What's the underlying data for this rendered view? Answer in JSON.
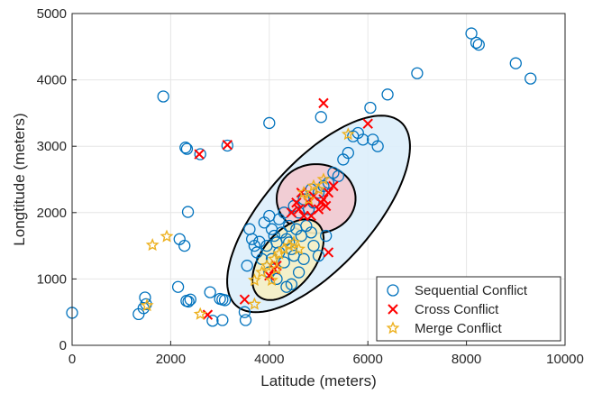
{
  "chart_data": {
    "type": "scatter",
    "xlabel": "Latitude (meters)",
    "ylabel": "Longtitude (meters)",
    "xlim": [
      0,
      10000
    ],
    "ylim": [
      0,
      5000
    ],
    "xticks": [
      "0",
      "2000",
      "4000",
      "6000",
      "8000",
      "10000"
    ],
    "yticks": [
      "0",
      "1000",
      "2000",
      "3000",
      "4000",
      "5000"
    ],
    "grid": true,
    "legend_position": "bottom-right",
    "colors": {
      "sequential": "#0072BD",
      "cross": "#FF0000",
      "merge": "#EDB120",
      "outer_ellipse_fill": "#ddeefb",
      "upper_ellipse_fill": "#f3c9cf",
      "lower_ellipse_fill": "#f6efc4"
    },
    "regions": [
      {
        "cx": 5000,
        "cy": 1980,
        "rx": 2500,
        "ry": 800,
        "angle_deg": 48,
        "fill": "outer_ellipse_fill"
      },
      {
        "cx": 4950,
        "cy": 2210,
        "rx": 800,
        "ry": 520,
        "angle_deg": 0,
        "fill": "upper_ellipse_fill"
      },
      {
        "cx": 4380,
        "cy": 1290,
        "rx": 950,
        "ry": 400,
        "angle_deg": 52,
        "fill": "lower_ellipse_fill"
      }
    ],
    "series": [
      {
        "name": "Sequential Conflict",
        "marker": "circle",
        "points": [
          [
            0,
            490
          ],
          [
            1350,
            470
          ],
          [
            1450,
            560
          ],
          [
            1480,
            720
          ],
          [
            1500,
            620
          ],
          [
            1850,
            3750
          ],
          [
            2150,
            880
          ],
          [
            2180,
            1600
          ],
          [
            2280,
            1500
          ],
          [
            2300,
            2980
          ],
          [
            2330,
            2960
          ],
          [
            2350,
            2010
          ],
          [
            2320,
            670
          ],
          [
            2360,
            660
          ],
          [
            2400,
            690
          ],
          [
            2600,
            2880
          ],
          [
            2800,
            800
          ],
          [
            2850,
            370
          ],
          [
            3000,
            700
          ],
          [
            3050,
            690
          ],
          [
            3100,
            680
          ],
          [
            3050,
            380
          ],
          [
            3150,
            3010
          ],
          [
            3500,
            500
          ],
          [
            3520,
            380
          ],
          [
            3550,
            1200
          ],
          [
            3600,
            1750
          ],
          [
            3650,
            1600
          ],
          [
            3800,
            1560
          ],
          [
            4000,
            3350
          ],
          [
            3900,
            1850
          ],
          [
            4000,
            1950
          ],
          [
            3950,
            1500
          ],
          [
            3750,
            1400
          ],
          [
            4100,
            1650
          ],
          [
            4050,
            1300
          ],
          [
            4150,
            1550
          ],
          [
            4200,
            1400
          ],
          [
            4250,
            1700
          ],
          [
            4300,
            1250
          ],
          [
            4350,
            1600
          ],
          [
            4400,
            1550
          ],
          [
            4450,
            1450
          ],
          [
            4500,
            1350
          ],
          [
            4200,
            1900
          ],
          [
            4300,
            2000
          ],
          [
            4400,
            1800
          ],
          [
            4500,
            2100
          ],
          [
            4600,
            2000
          ],
          [
            4700,
            2200
          ],
          [
            4800,
            2050
          ],
          [
            4850,
            2350
          ],
          [
            4900,
            2150
          ],
          [
            5000,
            2300
          ],
          [
            5100,
            2400
          ],
          [
            5200,
            2450
          ],
          [
            5300,
            2600
          ],
          [
            5400,
            2550
          ],
          [
            5500,
            2800
          ],
          [
            5600,
            2900
          ],
          [
            5700,
            3150
          ],
          [
            5800,
            3200
          ],
          [
            5900,
            3100
          ],
          [
            6050,
            3580
          ],
          [
            6100,
            3100
          ],
          [
            6200,
            3000
          ],
          [
            6400,
            3780
          ],
          [
            5050,
            3440
          ],
          [
            4600,
            1100
          ],
          [
            4450,
            920
          ],
          [
            4350,
            880
          ],
          [
            4150,
            1000
          ],
          [
            4000,
            1100
          ],
          [
            3850,
            1300
          ],
          [
            3700,
            1500
          ],
          [
            4750,
            1800
          ],
          [
            4650,
            1650
          ],
          [
            4900,
            1500
          ],
          [
            5000,
            1350
          ],
          [
            5150,
            1650
          ],
          [
            7000,
            4100
          ],
          [
            8100,
            4700
          ],
          [
            8200,
            4560
          ],
          [
            8250,
            4530
          ],
          [
            9000,
            4250
          ],
          [
            9300,
            4020
          ],
          [
            4700,
            1300
          ],
          [
            4550,
            1750
          ],
          [
            4050,
            1750
          ],
          [
            4850,
            1700
          ]
        ]
      },
      {
        "name": "Cross Conflict",
        "marker": "x",
        "points": [
          [
            2580,
            2880
          ],
          [
            3150,
            3020
          ],
          [
            5100,
            3650
          ],
          [
            6000,
            3340
          ],
          [
            5200,
            1400
          ],
          [
            3500,
            690
          ],
          [
            2750,
            460
          ],
          [
            4000,
            1050
          ],
          [
            4100,
            1150
          ],
          [
            4150,
            1200
          ],
          [
            4600,
            2050
          ],
          [
            4700,
            1950
          ],
          [
            4800,
            2150
          ],
          [
            4900,
            2250
          ],
          [
            5000,
            2050
          ],
          [
            5100,
            2200
          ],
          [
            5200,
            2300
          ],
          [
            5300,
            2400
          ],
          [
            4650,
            2300
          ],
          [
            4450,
            2000
          ],
          [
            4850,
            1950
          ],
          [
            5050,
            2150
          ],
          [
            4550,
            2150
          ],
          [
            5150,
            2100
          ]
        ]
      },
      {
        "name": "Merge Conflict",
        "marker": "star",
        "points": [
          [
            1630,
            1510
          ],
          [
            1920,
            1640
          ],
          [
            1520,
            600
          ],
          [
            2600,
            470
          ],
          [
            3700,
            980
          ],
          [
            3850,
            1100
          ],
          [
            3950,
            1200
          ],
          [
            4100,
            1300
          ],
          [
            4200,
            1380
          ],
          [
            4300,
            1450
          ],
          [
            4400,
            1500
          ],
          [
            4500,
            1550
          ],
          [
            4600,
            1450
          ],
          [
            4150,
            1150
          ],
          [
            4050,
            980
          ],
          [
            4700,
            2300
          ],
          [
            4800,
            2200
          ],
          [
            4900,
            2400
          ],
          [
            5000,
            2350
          ],
          [
            5100,
            2500
          ],
          [
            5600,
            3180
          ],
          [
            3700,
            620
          ]
        ]
      }
    ]
  }
}
